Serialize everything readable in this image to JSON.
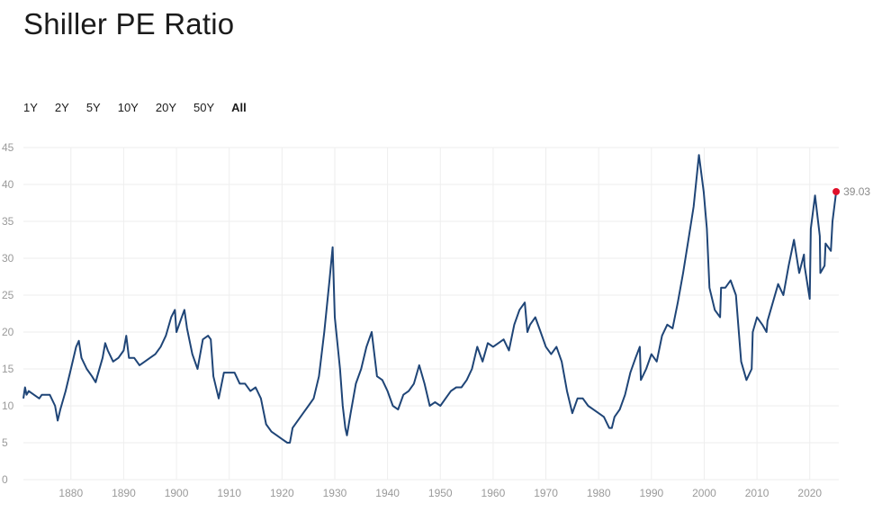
{
  "page": {
    "title": "Shiller PE Ratio",
    "ranges": [
      "1Y",
      "2Y",
      "5Y",
      "10Y",
      "20Y",
      "50Y",
      "All"
    ],
    "active_range": "All"
  },
  "colors": {
    "line": "#1f4577",
    "grid": "#eeeeee",
    "marker": "#e0102a",
    "axis_text": "#9a9a9a"
  },
  "chart_data": {
    "type": "line",
    "title": "Shiller PE Ratio",
    "xlabel": "",
    "ylabel": "",
    "xlim": [
      1871,
      2025.5
    ],
    "ylim": [
      0,
      45
    ],
    "x_ticks": [
      1880,
      1890,
      1900,
      1910,
      1920,
      1930,
      1940,
      1950,
      1960,
      1970,
      1980,
      1990,
      2000,
      2010,
      2020
    ],
    "y_ticks": [
      0,
      5,
      10,
      15,
      20,
      25,
      30,
      35,
      40,
      45
    ],
    "grid": true,
    "last_value_label": "39.03",
    "series": [
      {
        "name": "Shiller PE Ratio",
        "x": [
          1871,
          1871.3,
          1871.6,
          1872,
          1873,
          1874,
          1874.5,
          1875,
          1876,
          1877,
          1877.5,
          1878,
          1879,
          1880,
          1881,
          1881.5,
          1882,
          1883,
          1884,
          1884.7,
          1885,
          1886,
          1886.5,
          1887,
          1888,
          1889,
          1890,
          1890.5,
          1891,
          1892,
          1893,
          1894,
          1895,
          1896,
          1897,
          1898,
          1899,
          1899.7,
          1900,
          1901,
          1901.5,
          1902,
          1903,
          1904,
          1905,
          1906,
          1906.5,
          1907,
          1908,
          1909,
          1910,
          1911,
          1912,
          1913,
          1914,
          1915,
          1916,
          1917,
          1918,
          1919,
          1920,
          1921,
          1921.5,
          1922,
          1923,
          1924,
          1925,
          1926,
          1927,
          1928,
          1929,
          1929.6,
          1930,
          1931,
          1931.5,
          1932,
          1932.3,
          1933,
          1934,
          1935,
          1936,
          1937,
          1938,
          1939,
          1940,
          1941,
          1942,
          1943,
          1944,
          1945,
          1946,
          1947,
          1948,
          1949,
          1950,
          1951,
          1952,
          1953,
          1954,
          1955,
          1956,
          1957,
          1958,
          1959,
          1960,
          1961,
          1962,
          1963,
          1964,
          1965,
          1966,
          1966.5,
          1967,
          1968,
          1969,
          1970,
          1971,
          1972,
          1973,
          1974,
          1975,
          1976,
          1977,
          1978,
          1979,
          1980,
          1981,
          1982,
          1982.5,
          1983,
          1984,
          1985,
          1986,
          1987,
          1987.8,
          1988,
          1989,
          1990,
          1991,
          1992,
          1993,
          1994,
          1995,
          1996,
          1997,
          1998,
          1999,
          1999.9,
          2000.5,
          2001,
          2002,
          2003,
          2003.2,
          2004,
          2005,
          2006,
          2007,
          2008,
          2009,
          2009.2,
          2010,
          2011,
          2011.8,
          2012,
          2013,
          2014,
          2015,
          2016,
          2017,
          2018,
          2018.9,
          2019,
          2020,
          2020.2,
          2021,
          2021.9,
          2022,
          2022.8,
          2023,
          2024,
          2024.3,
          2025
        ],
        "values": [
          11,
          12.5,
          11.5,
          12,
          11.5,
          11,
          11.5,
          11.5,
          11.5,
          10,
          8,
          9.5,
          12,
          15,
          18,
          18.8,
          16.5,
          15,
          14,
          13.2,
          14,
          16.5,
          18.5,
          17.5,
          16,
          16.5,
          17.5,
          19.5,
          16.5,
          16.5,
          15.5,
          16,
          16.5,
          17,
          18,
          19.5,
          22,
          23,
          20,
          22,
          23,
          20.5,
          17,
          15,
          19,
          19.5,
          19,
          14,
          11,
          14.5,
          14.5,
          14.5,
          13,
          13,
          12,
          12.5,
          11,
          7.5,
          6.5,
          6,
          5.5,
          5,
          5,
          7,
          8,
          9,
          10,
          11,
          14,
          20,
          27,
          31.5,
          22,
          15,
          10,
          7,
          6,
          9,
          13,
          15,
          18,
          20,
          14,
          13.5,
          12,
          10,
          9.5,
          11.5,
          12,
          13,
          15.5,
          13,
          10,
          10.5,
          10,
          11,
          12,
          12.5,
          12.5,
          13.5,
          15,
          18,
          16,
          18.5,
          18,
          18.5,
          19,
          17.5,
          21,
          23,
          24,
          20,
          21,
          22,
          20,
          18,
          17,
          18,
          16,
          12,
          9,
          11,
          11,
          10,
          9.5,
          9,
          8.5,
          7,
          7,
          8.5,
          9.5,
          11.5,
          14.5,
          16.5,
          18,
          13.5,
          15,
          17,
          16,
          19.5,
          21,
          20.5,
          24,
          28,
          32.5,
          37,
          44,
          39,
          34,
          26,
          23,
          22,
          26,
          26,
          27,
          25,
          16,
          13.5,
          15,
          20,
          22,
          21,
          20,
          21.5,
          24,
          26.5,
          25,
          29,
          32.5,
          28,
          30.5,
          29,
          24.5,
          34,
          38.5,
          33,
          28,
          29,
          32,
          31,
          35,
          39.03
        ]
      }
    ]
  }
}
